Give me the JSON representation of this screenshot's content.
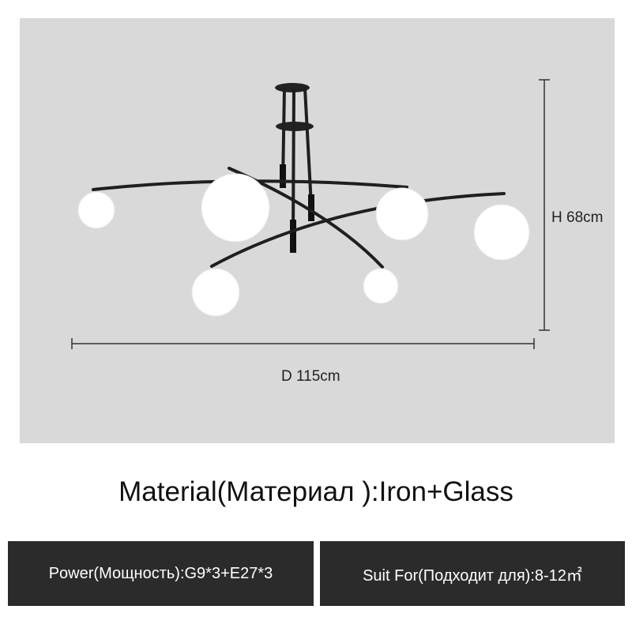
{
  "dimensions": {
    "height": "H 68cm",
    "diameter": "D 115cm"
  },
  "material": "Material(Материал ):Iron+Glass",
  "power": "Power(Мощность):G9*3+E27*3",
  "suit_for": "Suit For(Подходит для):8-12㎡",
  "colors": {
    "panel": "#d9d9d9",
    "spec_box": "#2b2b2b",
    "frame": "#1f1f1f",
    "globe": "#ffffff"
  }
}
